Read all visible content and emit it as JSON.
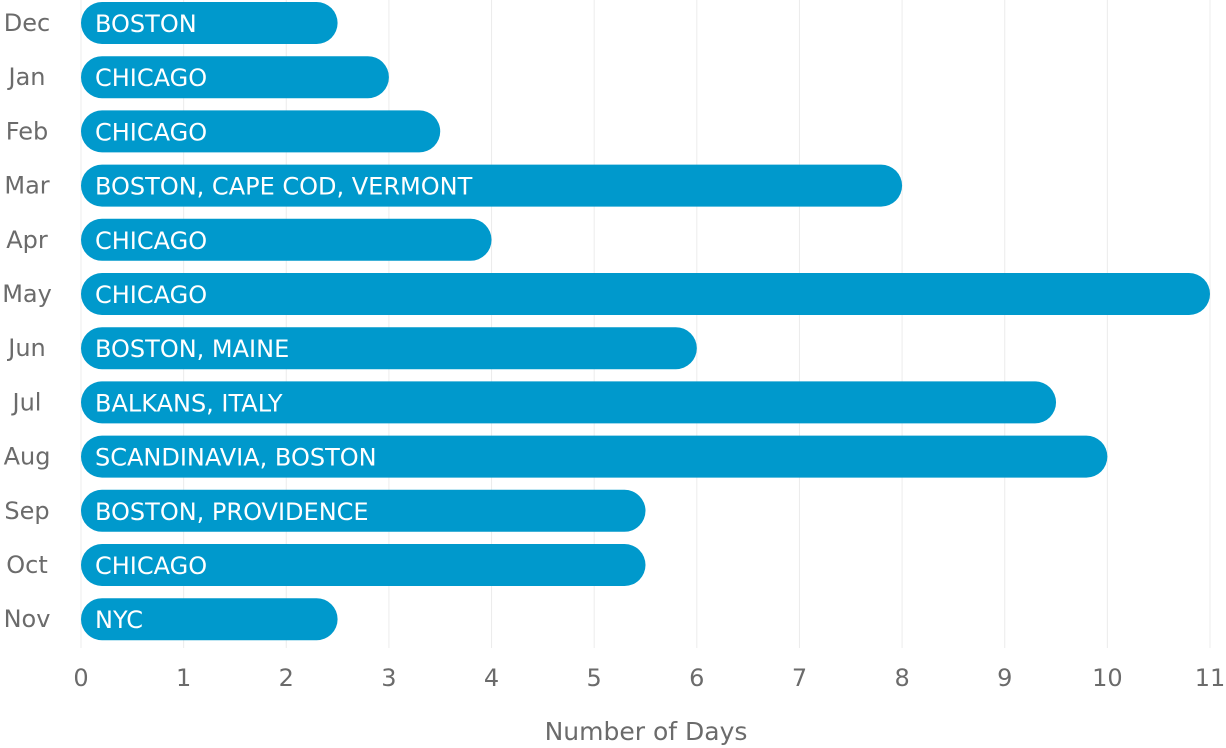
{
  "chart_data": {
    "type": "bar",
    "orientation": "horizontal",
    "xlabel": "Number of Days",
    "ylabel": "",
    "xlim": [
      0,
      11
    ],
    "xticks": [
      "0",
      "1",
      "2",
      "3",
      "4",
      "5",
      "6",
      "7",
      "8",
      "9",
      "10",
      "11"
    ],
    "grid": true,
    "categories": [
      "Dec",
      "Jan",
      "Feb",
      "Mar",
      "Apr",
      "May",
      "Jun",
      "Jul",
      "Aug",
      "Sep",
      "Oct",
      "Nov"
    ],
    "values": [
      2.5,
      3,
      3.5,
      8,
      4,
      11,
      6,
      9.5,
      10,
      5.5,
      5.5,
      2.5
    ],
    "bar_labels": [
      "BOSTON",
      "CHICAGO",
      "CHICAGO",
      "BOSTON, CAPE COD, VERMONT",
      "CHICAGO",
      "CHICAGO",
      "BOSTON, MAINE",
      "BALKANS, ITALY",
      "SCANDINAVIA, BOSTON",
      "BOSTON, PROVIDENCE",
      "CHICAGO",
      "NYC"
    ],
    "bar_color": "#0099cc"
  }
}
